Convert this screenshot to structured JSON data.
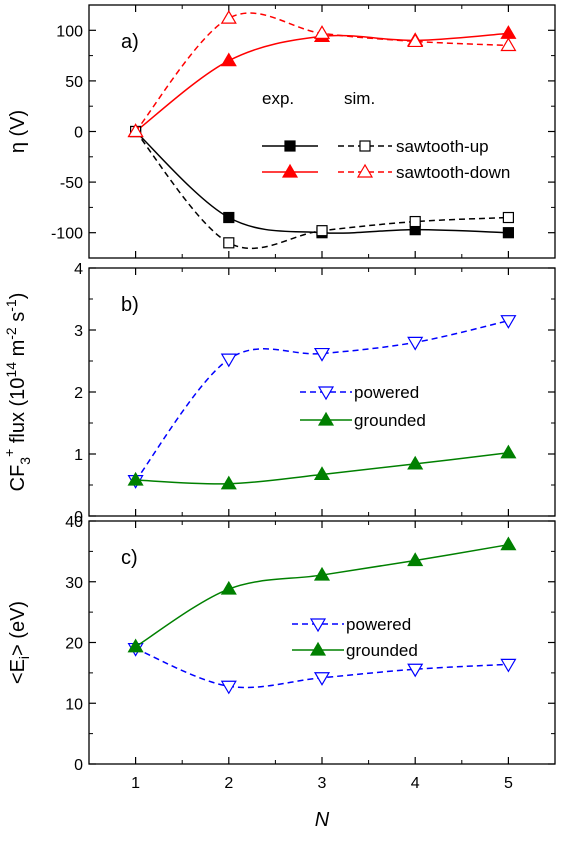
{
  "chart_data": [
    {
      "type": "line",
      "panel_label": "a)",
      "ylabel": "η (V)",
      "xlabel": "",
      "ylim": [
        -125,
        125
      ],
      "yticks": [
        -100,
        -50,
        0,
        50,
        100
      ],
      "x": [
        1,
        2,
        3,
        4,
        5
      ],
      "legend_headers": [
        "exp.",
        "sim."
      ],
      "series": [
        {
          "name": "sawtooth-up",
          "kind": "exp.",
          "color": "#000000",
          "marker": "square-filled",
          "dash": "solid",
          "values": [
            0,
            -85,
            -100,
            -97,
            -100
          ]
        },
        {
          "name": "sawtooth-down",
          "kind": "exp.",
          "color": "#ff0000",
          "marker": "triangle-up-filled",
          "dash": "solid",
          "values": [
            0,
            70,
            94,
            90,
            97
          ]
        },
        {
          "name": "sawtooth-up",
          "kind": "sim.",
          "color": "#000000",
          "marker": "square-open",
          "dash": "dashed",
          "values": [
            0,
            -110,
            -98,
            -89,
            -85
          ]
        },
        {
          "name": "sawtooth-down",
          "kind": "sim.",
          "color": "#ff0000",
          "marker": "triangle-up-open",
          "dash": "dashed",
          "values": [
            0,
            112,
            97,
            89,
            85
          ]
        }
      ],
      "legend": [
        "sawtooth-up",
        "sawtooth-down"
      ]
    },
    {
      "type": "line",
      "panel_label": "b)",
      "ylabel": "CF3+ flux (10^14 m^-2 s^-1)",
      "ylabel_parts": {
        "main": "CF",
        "sub": "3",
        "sup": "+",
        "rest": " flux (10",
        "exp1": "14",
        "mid": " m",
        "exp2": "-2",
        "mid2": " s",
        "exp3": "-1",
        "end": ")"
      },
      "xlabel": "",
      "ylim": [
        0,
        4
      ],
      "yticks": [
        0,
        1,
        2,
        3,
        4
      ],
      "x": [
        1,
        2,
        3,
        4,
        5
      ],
      "series": [
        {
          "name": "powered",
          "color": "#0000ff",
          "marker": "triangle-down-open",
          "dash": "dashed",
          "values": [
            0.57,
            2.53,
            2.62,
            2.8,
            3.15
          ]
        },
        {
          "name": "grounded",
          "color": "#008000",
          "marker": "triangle-up-filled",
          "dash": "solid",
          "values": [
            0.58,
            0.52,
            0.67,
            0.84,
            1.02
          ]
        }
      ]
    },
    {
      "type": "line",
      "panel_label": "c)",
      "ylabel": "<Ei> (eV)",
      "ylabel_parts": {
        "pre": "<E",
        "sub": "i",
        "post": "> (eV)"
      },
      "xlabel": "N",
      "ylim": [
        0,
        40
      ],
      "yticks": [
        0,
        10,
        20,
        30,
        40
      ],
      "x": [
        1,
        2,
        3,
        4,
        5
      ],
      "xticks": [
        "1",
        "2",
        "3",
        "4",
        "5"
      ],
      "series": [
        {
          "name": "powered",
          "color": "#0000ff",
          "marker": "triangle-down-open",
          "dash": "dashed",
          "values": [
            19,
            12.8,
            14.2,
            15.6,
            16.4
          ]
        },
        {
          "name": "grounded",
          "color": "#008000",
          "marker": "triangle-up-filled",
          "dash": "solid",
          "values": [
            19.3,
            28.8,
            31.1,
            33.5,
            36.1
          ]
        }
      ]
    }
  ]
}
